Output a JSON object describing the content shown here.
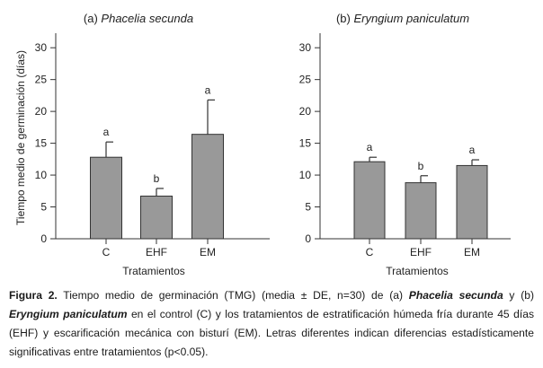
{
  "chart_data": [
    {
      "type": "bar",
      "panel_label": "(a)",
      "species": "Phacelia secunda",
      "title": "(a) Phacelia secunda",
      "xlabel": "Tratamientos",
      "ylabel": "Tiempo medio de germinación (días)",
      "ylim": [
        0,
        32
      ],
      "yticks": [
        0,
        5,
        10,
        15,
        20,
        25,
        30
      ],
      "categories": [
        "C",
        "EHF",
        "EM"
      ],
      "values": [
        12.8,
        6.7,
        16.4
      ],
      "errors": [
        2.4,
        1.2,
        5.4
      ],
      "letters": [
        "a",
        "b",
        "a"
      ]
    },
    {
      "type": "bar",
      "panel_label": "(b)",
      "species": "Eryngium paniculatum",
      "title": "(b) Eryngium paniculatum",
      "xlabel": "Tratamientos",
      "ylabel": "",
      "ylim": [
        0,
        32
      ],
      "yticks": [
        0,
        5,
        10,
        15,
        20,
        25,
        30
      ],
      "categories": [
        "C",
        "EHF",
        "EM"
      ],
      "values": [
        12.1,
        8.8,
        11.5
      ],
      "errors": [
        0.7,
        1.1,
        0.9
      ],
      "letters": [
        "a",
        "b",
        "a"
      ]
    }
  ],
  "caption": {
    "label": "Figura 2.",
    "text_1": " Tiempo medio de germinación (TMG) (media ± DE, n=30) de (a) ",
    "species_a": "Phacelia secunda",
    "text_2": " y (b) ",
    "species_b": "Eryngium paniculatum",
    "text_3": " en el control (C) y los tratamientos de estratificación húmeda fría durante 45 días (EHF) y escarificación mecánica con bisturí (EM). Letras diferentes indican diferencias estadísticamente significativas entre tratamientos (p<0.05)."
  }
}
